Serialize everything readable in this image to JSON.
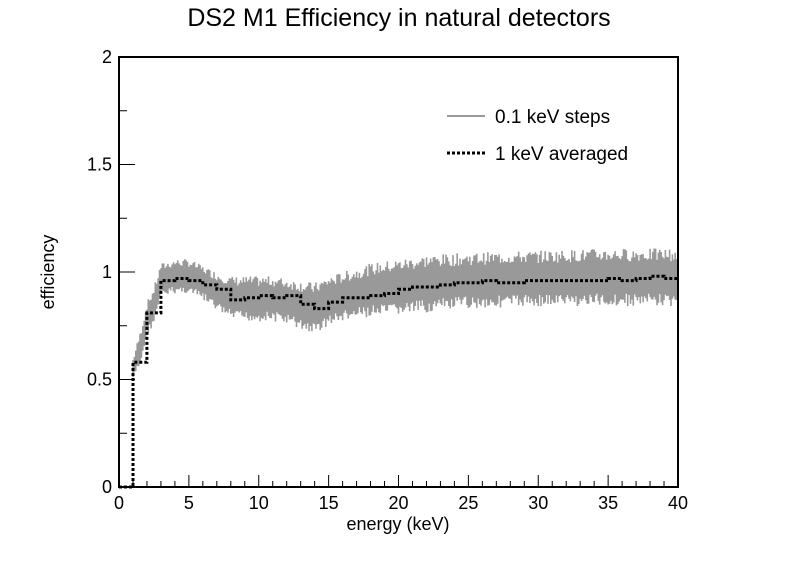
{
  "chart_data": {
    "type": "line",
    "title": "DS2 M1 Efficiency in natural detectors",
    "xlabel": "energy (keV)",
    "ylabel": "efficiency",
    "xlim": [
      0,
      40
    ],
    "ylim": [
      0,
      2
    ],
    "x_ticks": [
      "0",
      "5",
      "10",
      "15",
      "20",
      "25",
      "30",
      "35",
      "40"
    ],
    "y_ticks": [
      "0",
      "0.5",
      "1",
      "1.5",
      "2"
    ],
    "grid": false,
    "legend_position": "top-right",
    "series": [
      {
        "name": "0.1 keV steps",
        "style": "solid",
        "color": "#999999",
        "step": 0.1,
        "envelope_x": [
          1,
          1.5,
          2,
          2.5,
          3,
          4,
          5,
          6,
          7,
          8,
          9,
          10,
          11,
          12,
          13,
          14,
          15,
          16,
          17,
          18,
          19,
          20,
          22,
          25,
          30,
          35,
          40
        ],
        "envelope_low": [
          0.5,
          0.56,
          0.7,
          0.76,
          0.88,
          0.9,
          0.9,
          0.87,
          0.82,
          0.78,
          0.77,
          0.77,
          0.77,
          0.76,
          0.73,
          0.71,
          0.75,
          0.77,
          0.78,
          0.79,
          0.79,
          0.8,
          0.81,
          0.83,
          0.84,
          0.84,
          0.84
        ],
        "envelope_high": [
          0.6,
          0.72,
          0.86,
          0.93,
          1.04,
          1.06,
          1.06,
          1.03,
          1.0,
          0.98,
          0.98,
          0.98,
          0.98,
          0.97,
          0.96,
          0.95,
          0.98,
          1.0,
          1.02,
          1.04,
          1.05,
          1.06,
          1.08,
          1.09,
          1.1,
          1.11,
          1.11
        ]
      },
      {
        "name": "1 keV averaged",
        "style": "dotted",
        "color": "#000000",
        "step": 1,
        "x": [
          0,
          1,
          2,
          3,
          4,
          5,
          6,
          7,
          8,
          9,
          10,
          11,
          12,
          13,
          14,
          15,
          16,
          17,
          18,
          19,
          20,
          21,
          22,
          23,
          24,
          25,
          26,
          27,
          28,
          29,
          30,
          31,
          32,
          33,
          34,
          35,
          36,
          37,
          38,
          39
        ],
        "values": [
          0,
          0.58,
          0.81,
          0.96,
          0.97,
          0.96,
          0.94,
          0.92,
          0.87,
          0.88,
          0.89,
          0.88,
          0.89,
          0.85,
          0.83,
          0.86,
          0.88,
          0.88,
          0.89,
          0.9,
          0.92,
          0.93,
          0.93,
          0.94,
          0.95,
          0.95,
          0.96,
          0.95,
          0.95,
          0.96,
          0.96,
          0.96,
          0.96,
          0.96,
          0.96,
          0.97,
          0.96,
          0.97,
          0.98,
          0.97
        ]
      }
    ]
  }
}
